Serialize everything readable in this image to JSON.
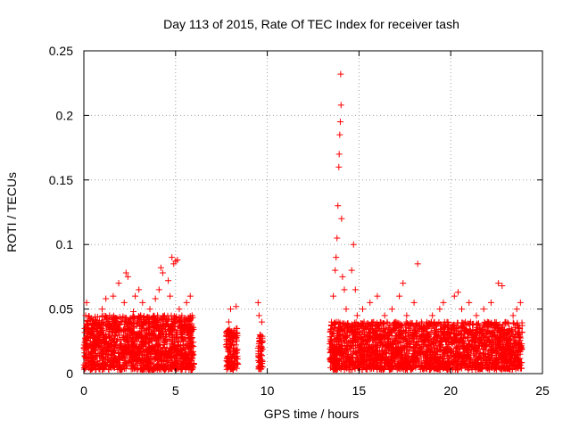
{
  "chart_data": {
    "type": "scatter",
    "title": "Day 113 of 2015, Rate Of TEC Index for receiver tash",
    "xlabel": "GPS time / hours",
    "ylabel": "ROTI / TECUs",
    "xlim": [
      0,
      25
    ],
    "ylim": [
      0,
      0.25
    ],
    "x_ticks": [
      "0",
      "5",
      "10",
      "15",
      "20",
      "25"
    ],
    "y_ticks": [
      "0",
      "0.05",
      "0.1",
      "0.15",
      "0.2",
      "0.25"
    ],
    "grid": true,
    "marker": "plus",
    "color": "#ff0000",
    "series": [
      {
        "points": [
          [
            0.05,
            0.035
          ],
          [
            0.1,
            0.045
          ],
          [
            0.15,
            0.055
          ],
          [
            0.2,
            0.02
          ],
          [
            0.3,
            0.012
          ],
          [
            0.4,
            0.03
          ],
          [
            0.5,
            0.025
          ],
          [
            0.6,
            0.018
          ],
          [
            0.7,
            0.04
          ],
          [
            0.8,
            0.022
          ],
          [
            0.9,
            0.035
          ],
          [
            1.0,
            0.05
          ],
          [
            1.1,
            0.03
          ],
          [
            1.2,
            0.058
          ],
          [
            1.3,
            0.02
          ],
          [
            1.4,
            0.045
          ],
          [
            1.5,
            0.015
          ],
          [
            1.6,
            0.06
          ],
          [
            1.7,
            0.032
          ],
          [
            1.8,
            0.025
          ],
          [
            1.9,
            0.07
          ],
          [
            2.0,
            0.04
          ],
          [
            2.1,
            0.028
          ],
          [
            2.2,
            0.055
          ],
          [
            2.3,
            0.078
          ],
          [
            2.4,
            0.075
          ],
          [
            2.5,
            0.035
          ],
          [
            2.6,
            0.02
          ],
          [
            2.7,
            0.048
          ],
          [
            2.8,
            0.06
          ],
          [
            2.9,
            0.03
          ],
          [
            3.0,
            0.065
          ],
          [
            3.1,
            0.045
          ],
          [
            3.2,
            0.055
          ],
          [
            3.3,
            0.025
          ],
          [
            3.4,
            0.04
          ],
          [
            3.5,
            0.03
          ],
          [
            3.6,
            0.05
          ],
          [
            3.7,
            0.02
          ],
          [
            3.8,
            0.042
          ],
          [
            3.9,
            0.058
          ],
          [
            4.0,
            0.035
          ],
          [
            4.1,
            0.065
          ],
          [
            4.2,
            0.082
          ],
          [
            4.3,
            0.078
          ],
          [
            4.4,
            0.045
          ],
          [
            4.5,
            0.03
          ],
          [
            4.6,
            0.072
          ],
          [
            4.7,
            0.06
          ],
          [
            4.8,
            0.09
          ],
          [
            4.9,
            0.085
          ],
          [
            5.0,
            0.087
          ],
          [
            5.1,
            0.088
          ],
          [
            5.2,
            0.05
          ],
          [
            5.3,
            0.035
          ],
          [
            5.4,
            0.025
          ],
          [
            5.5,
            0.04
          ],
          [
            5.6,
            0.055
          ],
          [
            5.7,
            0.03
          ],
          [
            5.8,
            0.06
          ],
          [
            5.9,
            0.045
          ],
          [
            7.8,
            0.025
          ],
          [
            7.9,
            0.04
          ],
          [
            8.0,
            0.05
          ],
          [
            8.1,
            0.03
          ],
          [
            8.2,
            0.015
          ],
          [
            8.3,
            0.052
          ],
          [
            8.35,
            0.035
          ],
          [
            9.5,
            0.055
          ],
          [
            9.55,
            0.045
          ],
          [
            9.6,
            0.03
          ],
          [
            9.65,
            0.015
          ],
          [
            9.7,
            0.04
          ],
          [
            13.5,
            0.04
          ],
          [
            13.6,
            0.06
          ],
          [
            13.7,
            0.08
          ],
          [
            13.75,
            0.09
          ],
          [
            13.8,
            0.105
          ],
          [
            13.85,
            0.13
          ],
          [
            13.9,
            0.16
          ],
          [
            13.92,
            0.17
          ],
          [
            13.95,
            0.185
          ],
          [
            13.98,
            0.195
          ],
          [
            14.0,
            0.232
          ],
          [
            14.02,
            0.208
          ],
          [
            14.05,
            0.12
          ],
          [
            14.1,
            0.075
          ],
          [
            14.2,
            0.065
          ],
          [
            14.3,
            0.05
          ],
          [
            14.4,
            0.035
          ],
          [
            14.5,
            0.025
          ],
          [
            14.6,
            0.08
          ],
          [
            14.7,
            0.1
          ],
          [
            14.8,
            0.065
          ],
          [
            14.9,
            0.045
          ],
          [
            15.0,
            0.03
          ],
          [
            15.2,
            0.05
          ],
          [
            15.4,
            0.035
          ],
          [
            15.6,
            0.055
          ],
          [
            15.8,
            0.04
          ],
          [
            16.0,
            0.06
          ],
          [
            16.2,
            0.03
          ],
          [
            16.4,
            0.045
          ],
          [
            16.6,
            0.025
          ],
          [
            16.8,
            0.05
          ],
          [
            17.0,
            0.035
          ],
          [
            17.2,
            0.06
          ],
          [
            17.4,
            0.07
          ],
          [
            17.6,
            0.045
          ],
          [
            17.8,
            0.03
          ],
          [
            18.0,
            0.055
          ],
          [
            18.2,
            0.085
          ],
          [
            18.4,
            0.04
          ],
          [
            18.6,
            0.035
          ],
          [
            18.8,
            0.025
          ],
          [
            19.0,
            0.045
          ],
          [
            19.2,
            0.03
          ],
          [
            19.4,
            0.05
          ],
          [
            19.6,
            0.055
          ],
          [
            19.8,
            0.04
          ],
          [
            20.0,
            0.035
          ],
          [
            20.2,
            0.06
          ],
          [
            20.4,
            0.063
          ],
          [
            20.6,
            0.05
          ],
          [
            20.8,
            0.04
          ],
          [
            21.0,
            0.055
          ],
          [
            21.2,
            0.03
          ],
          [
            21.4,
            0.045
          ],
          [
            21.6,
            0.035
          ],
          [
            21.8,
            0.05
          ],
          [
            22.0,
            0.04
          ],
          [
            22.2,
            0.055
          ],
          [
            22.4,
            0.03
          ],
          [
            22.6,
            0.07
          ],
          [
            22.8,
            0.068
          ],
          [
            23.0,
            0.04
          ],
          [
            23.2,
            0.035
          ],
          [
            23.4,
            0.045
          ],
          [
            23.6,
            0.05
          ],
          [
            23.8,
            0.055
          ]
        ]
      }
    ],
    "clusters": [
      {
        "x_start": 0.0,
        "x_end": 6.0,
        "y_min": 0.003,
        "y_max": 0.045,
        "count": 1500
      },
      {
        "x_start": 7.75,
        "x_end": 8.4,
        "y_min": 0.003,
        "y_max": 0.035,
        "count": 140
      },
      {
        "x_start": 9.5,
        "x_end": 9.75,
        "y_min": 0.003,
        "y_max": 0.03,
        "count": 60
      },
      {
        "x_start": 13.4,
        "x_end": 23.9,
        "y_min": 0.003,
        "y_max": 0.04,
        "count": 2400
      }
    ]
  }
}
